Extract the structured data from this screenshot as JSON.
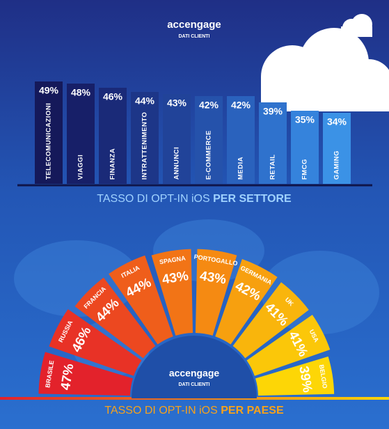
{
  "brand": {
    "name": "accengage",
    "subtitle": "DATI CLIENTI"
  },
  "chart_data": [
    {
      "type": "bar",
      "title": "TASSO DI OPT-IN iOS",
      "title_emphasis": "PER SETTORE",
      "categories": [
        "TELECOMUNICAZIONI",
        "VIAGGI",
        "FINANZA",
        "INTRATTENIMENTO",
        "ANNUNCI",
        "E-COMMERCE",
        "MEDIA",
        "RETAIL",
        "FMCG",
        "GAMING"
      ],
      "values": [
        49,
        48,
        46,
        44,
        43,
        42,
        42,
        39,
        35,
        34
      ],
      "value_labels": [
        "49%",
        "48%",
        "46%",
        "44%",
        "43%",
        "42%",
        "42%",
        "39%",
        "35%",
        "34%"
      ],
      "colors": [
        "#15195a",
        "#171f68",
        "#1a2a78",
        "#1d3688",
        "#214399",
        "#2552ab",
        "#2a62bd",
        "#2f72cd",
        "#3583dc",
        "#3b92e6"
      ],
      "ylim": [
        0,
        50
      ]
    },
    {
      "type": "radial-bar",
      "title": "TASSO DI OPT-IN iOS",
      "title_emphasis": "PER PAESE",
      "categories": [
        "BRASILE",
        "RUSSIA",
        "FRANCIA",
        "ITALIA",
        "SPAGNA",
        "PORTOGALLO",
        "GERMANIA",
        "UK",
        "USA",
        "BELGIO"
      ],
      "values": [
        47,
        46,
        44,
        44,
        43,
        43,
        42,
        41,
        41,
        39
      ],
      "value_labels": [
        "47%",
        "46%",
        "44%",
        "44%",
        "43%",
        "43%",
        "42%",
        "41%",
        "41%",
        "39%"
      ],
      "colors": [
        "#e3222b",
        "#e83226",
        "#ec4820",
        "#ef5e1b",
        "#f27416",
        "#f58a12",
        "#f7a00f",
        "#f9b50c",
        "#fbc709",
        "#fdd606"
      ],
      "rlim": [
        0,
        50
      ]
    }
  ]
}
